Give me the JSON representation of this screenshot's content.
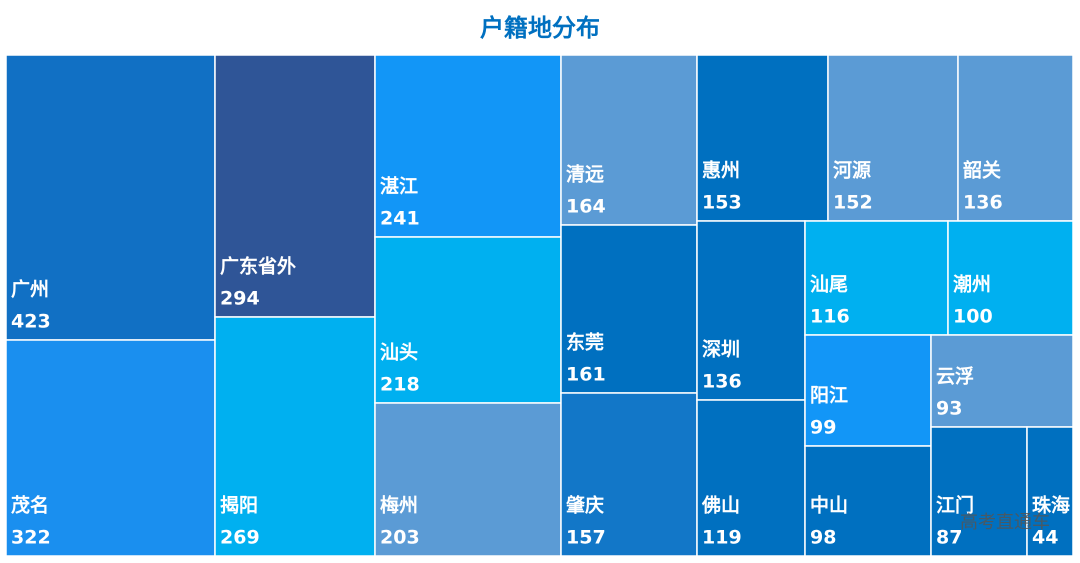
{
  "chart_data": {
    "type": "treemap",
    "title": "户籍地分布",
    "categories": [
      "广州",
      "茂名",
      "广东省外",
      "揭阳",
      "湛江",
      "汕头",
      "梅州",
      "清远",
      "东莞",
      "肇庆",
      "惠州",
      "河源",
      "韶关",
      "深圳",
      "佛山",
      "汕尾",
      "潮州",
      "阳江",
      "云浮",
      "中山",
      "江门",
      "珠海"
    ],
    "values": [
      423,
      322,
      294,
      269,
      241,
      218,
      203,
      164,
      161,
      157,
      153,
      152,
      136,
      136,
      119,
      116,
      100,
      99,
      93,
      98,
      87,
      44
    ],
    "colors": [
      "#1170c4",
      "#1a8fef",
      "#2f5597",
      "#00b0f0",
      "#1296f7",
      "#00b0f0",
      "#5b9bd5",
      "#5b9bd5",
      "#0070c0",
      "#1277c8",
      "#0070c0",
      "#5b9bd5",
      "#5b9bd5",
      "#0070c0",
      "#0070c0",
      "#00b0f0",
      "#00b0f0",
      "#1296f7",
      "#5b9bd5",
      "#0070c0",
      "#0070c0",
      "#0070c0"
    ],
    "watermark": "高考直通车"
  }
}
